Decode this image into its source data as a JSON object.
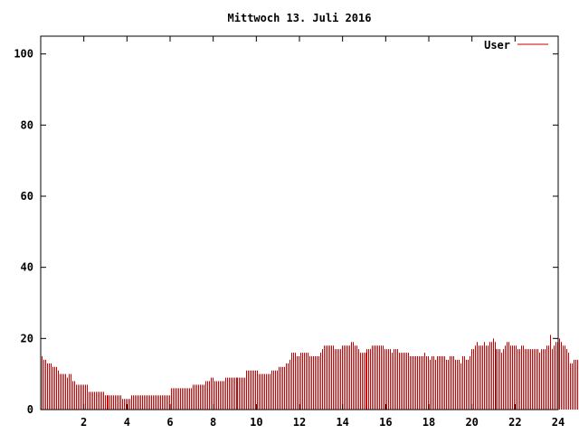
{
  "chart_data": {
    "type": "bar",
    "title": "Mittwoch 13. Juli 2016",
    "xlabel": "",
    "ylabel": "",
    "xlim": [
      0,
      24
    ],
    "ylim": [
      0,
      105
    ],
    "x_ticks": [
      2,
      4,
      6,
      8,
      10,
      12,
      14,
      16,
      18,
      20,
      22,
      24
    ],
    "y_ticks": [
      0,
      20,
      40,
      60,
      80,
      100
    ],
    "grid": false,
    "legend_position": "top-right",
    "color": "#cc0000",
    "series": [
      {
        "name": "User",
        "start_hour": 0,
        "interval_minutes": 5,
        "values": [
          15,
          14,
          14,
          13,
          13,
          13,
          12,
          12,
          12,
          11,
          10,
          10,
          10,
          10,
          9,
          10,
          10,
          8,
          8,
          7,
          7,
          7,
          7,
          7,
          7,
          7,
          5,
          5,
          5,
          5,
          5,
          5,
          5,
          5,
          5,
          4,
          4,
          4,
          4,
          4,
          4,
          4,
          4,
          4,
          4,
          3,
          3,
          3,
          3,
          3,
          4,
          4,
          4,
          4,
          4,
          4,
          4,
          4,
          4,
          4,
          4,
          4,
          4,
          4,
          4,
          4,
          4,
          4,
          4,
          4,
          4,
          4,
          6,
          6,
          6,
          6,
          6,
          6,
          6,
          6,
          6,
          6,
          6,
          6,
          7,
          7,
          7,
          7,
          7,
          7,
          7,
          8,
          8,
          8,
          9,
          9,
          8,
          8,
          8,
          8,
          8,
          8,
          9,
          9,
          9,
          9,
          9,
          9,
          9,
          9,
          9,
          9,
          9,
          9,
          11,
          11,
          11,
          11,
          11,
          11,
          11,
          10,
          10,
          10,
          10,
          10,
          10,
          10,
          11,
          11,
          11,
          11,
          12,
          12,
          12,
          12,
          13,
          13,
          14,
          16,
          16,
          16,
          15,
          15,
          16,
          16,
          16,
          16,
          16,
          15,
          15,
          15,
          15,
          15,
          15,
          16,
          17,
          18,
          18,
          18,
          18,
          18,
          18,
          17,
          17,
          17,
          17,
          18,
          18,
          18,
          18,
          18,
          19,
          19,
          18,
          18,
          17,
          16,
          16,
          16,
          16,
          17,
          17,
          17,
          18,
          18,
          18,
          18,
          18,
          18,
          18,
          17,
          17,
          17,
          17,
          16,
          17,
          17,
          17,
          16,
          16,
          16,
          16,
          16,
          16,
          15,
          15,
          15,
          15,
          15,
          15,
          15,
          15,
          16,
          15,
          15,
          14,
          15,
          15,
          14,
          15,
          15,
          15,
          15,
          15,
          14,
          14,
          15,
          15,
          15,
          14,
          14,
          14,
          13,
          15,
          15,
          14,
          14,
          15,
          17,
          17,
          18,
          19,
          18,
          18,
          18,
          19,
          18,
          18,
          19,
          19,
          20,
          19,
          17,
          17,
          17,
          16,
          17,
          18,
          19,
          19,
          18,
          18,
          18,
          18,
          17,
          17,
          18,
          18,
          17,
          17,
          17,
          17,
          17,
          17,
          17,
          17,
          16,
          17,
          17,
          17,
          18,
          18,
          21,
          17,
          18,
          19,
          19,
          20,
          19,
          18,
          18,
          17,
          16,
          13,
          13,
          14,
          14,
          14,
          14,
          14,
          14
        ]
      }
    ]
  }
}
